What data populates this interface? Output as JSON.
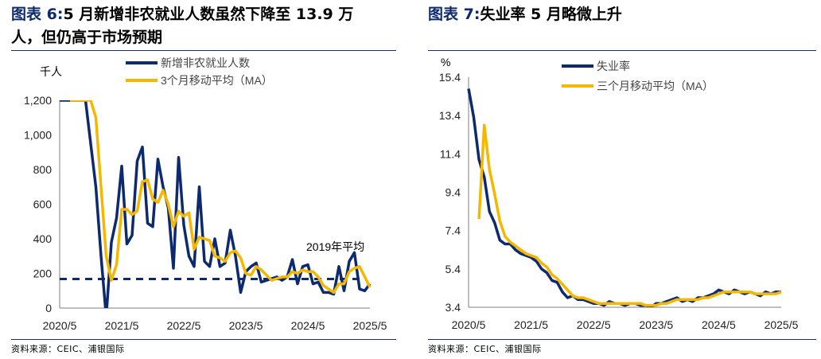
{
  "left": {
    "figure_label": "图表 6:",
    "title": "5 月新增非农就业人数虽然下降至 13.9 万人，但仍高于市场预期",
    "title_line1": "5 月新增非农就业人数虽然下降至 13.9 万",
    "title_line2": "人，但仍高于市场预期",
    "source": "资料来源：CEIC、浦银国际"
  },
  "right": {
    "figure_label": "图表 7:",
    "title": "失业率 5 月略微上升",
    "source": "资料来源：CEIC、浦银国际"
  },
  "chart_data": [
    {
      "type": "line",
      "title": "5 月新增非农就业人数虽然下降至 13.9 万人，但仍高于市场预期",
      "ylabel": "千人",
      "xlabel": "",
      "ylim": [
        0,
        1200
      ],
      "yticks": [
        0,
        200,
        400,
        600,
        800,
        1000,
        1200
      ],
      "ytick_labels": [
        "0",
        "200",
        "400",
        "600",
        "800",
        "1,000",
        "1,200"
      ],
      "xlim": [
        0,
        60
      ],
      "xticks": [
        0,
        12,
        24,
        36,
        48,
        60
      ],
      "xtick_labels": [
        "2020/5",
        "2021/5",
        "2022/5",
        "2023/5",
        "2024/5",
        "2025/5"
      ],
      "grid": false,
      "legend": "top",
      "annotation": "2019年平均",
      "reference_line": {
        "name": "2019年平均",
        "value": 168,
        "style": "dashed"
      },
      "series": [
        {
          "name": "新增非农就业人数",
          "color": "#0e2a6e",
          "values": [
            1200,
            1200,
            1200,
            1200,
            1200,
            1200,
            950,
            700,
            300,
            -50,
            380,
            520,
            820,
            370,
            420,
            850,
            930,
            490,
            470,
            860,
            700,
            580,
            230,
            870,
            480,
            300,
            240,
            700,
            270,
            240,
            400,
            240,
            260,
            450,
            300,
            90,
            210,
            240,
            260,
            150,
            160,
            170,
            180,
            160,
            180,
            280,
            140,
            240,
            250,
            140,
            150,
            90,
            90,
            80,
            240,
            100,
            270,
            320,
            110,
            100,
            140
          ]
        },
        {
          "name": "3个月移动平均（MA）",
          "color": "#f5b800",
          "values": [
            null,
            null,
            1200,
            1200,
            1200,
            1200,
            1200,
            1100,
            700,
            300,
            160,
            250,
            570,
            570,
            540,
            560,
            730,
            740,
            630,
            610,
            680,
            600,
            470,
            560,
            530,
            550,
            340,
            410,
            400,
            390,
            300,
            290,
            270,
            320,
            330,
            290,
            200,
            190,
            240,
            220,
            190,
            160,
            170,
            180,
            180,
            210,
            200,
            220,
            210,
            210,
            180,
            130,
            110,
            90,
            140,
            140,
            210,
            230,
            240,
            180,
            120
          ]
        }
      ]
    },
    {
      "type": "line",
      "title": "失业率 5 月略微上升",
      "ylabel": "%",
      "xlabel": "",
      "ylim": [
        3.4,
        15.4
      ],
      "yticks": [
        3.4,
        5.4,
        7.4,
        9.4,
        11.4,
        13.4,
        15.4
      ],
      "ytick_labels": [
        "3.4",
        "5.4",
        "7.4",
        "9.4",
        "11.4",
        "13.4",
        "15.4"
      ],
      "xlim": [
        0,
        60
      ],
      "xticks": [
        0,
        12,
        24,
        36,
        48,
        60
      ],
      "xtick_labels": [
        "2020/5",
        "2021/5",
        "2022/5",
        "2023/5",
        "2024/5",
        "2025/5"
      ],
      "grid": false,
      "legend": "top",
      "series": [
        {
          "name": "失业率",
          "color": "#0e2a6e",
          "values": [
            14.8,
            13.3,
            11.1,
            10.2,
            8.4,
            7.8,
            6.9,
            6.7,
            6.7,
            6.4,
            6.2,
            6.1,
            6.0,
            5.8,
            5.4,
            5.2,
            4.8,
            4.7,
            4.2,
            3.9,
            4.0,
            3.8,
            3.8,
            3.7,
            3.6,
            3.6,
            3.5,
            3.7,
            3.6,
            3.6,
            3.5,
            3.6,
            3.6,
            3.5,
            3.5,
            3.4,
            3.6,
            3.6,
            3.7,
            3.8,
            3.9,
            3.7,
            3.8,
            3.7,
            3.9,
            3.9,
            4.0,
            4.1,
            4.3,
            4.2,
            4.1,
            4.3,
            4.2,
            4.1,
            4.2,
            4.1,
            4.0,
            4.2,
            4.1,
            4.2,
            4.2
          ]
        },
        {
          "name": "三个月移动平均（MA）",
          "color": "#f5b800",
          "values": [
            null,
            null,
            8.0,
            12.9,
            10.6,
            9.3,
            7.9,
            7.1,
            6.8,
            6.6,
            6.4,
            6.2,
            6.1,
            6.0,
            5.7,
            5.5,
            5.1,
            4.9,
            4.6,
            4.3,
            4.0,
            3.9,
            3.9,
            3.8,
            3.7,
            3.6,
            3.6,
            3.6,
            3.6,
            3.6,
            3.6,
            3.6,
            3.6,
            3.6,
            3.5,
            3.5,
            3.5,
            3.6,
            3.6,
            3.7,
            3.8,
            3.8,
            3.8,
            3.8,
            3.8,
            3.9,
            3.9,
            4.0,
            4.1,
            4.2,
            4.2,
            4.2,
            4.2,
            4.2,
            4.2,
            4.1,
            4.1,
            4.1,
            4.1,
            4.1,
            4.2
          ]
        }
      ]
    }
  ]
}
